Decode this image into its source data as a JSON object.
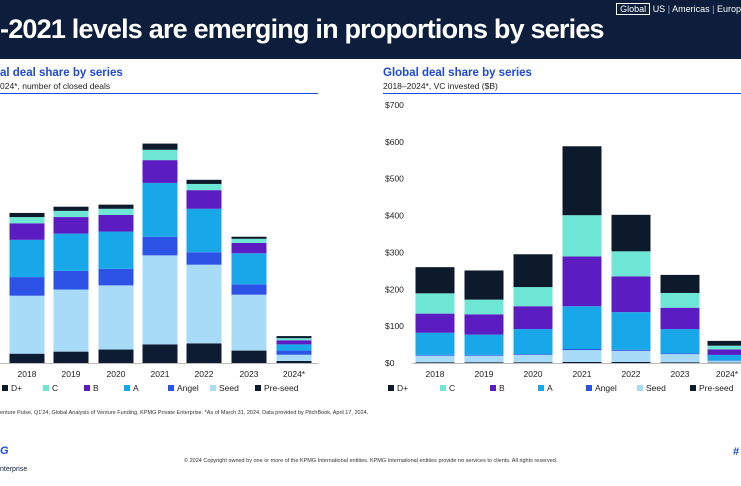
{
  "header": {
    "headline": "-2021 levels are emerging in proportions by series",
    "region_selected": "Global",
    "regions": [
      "US",
      "Americas",
      "Europ"
    ]
  },
  "left_chart": {
    "title": "al deal share by series",
    "subtitle": "024*, number of closed deals"
  },
  "right_chart": {
    "title": "Global deal share by series",
    "subtitle": "2018–2024*, VC invested ($B)"
  },
  "colors": {
    "D+": "#0c1a2c",
    "C": "#6ee6d6",
    "B": "#5b1cc2",
    "A": "#18a8ea",
    "Angel": "#2c53e6",
    "Seed": "#a8dbf8",
    "Pre-seed": "#0d1b33"
  },
  "legend_left": [
    "D+",
    "C",
    "B",
    "A",
    "Angel",
    "Seed",
    "Pre-seed"
  ],
  "legend_right": [
    "D+",
    "C",
    "B",
    "A",
    "Angel",
    "Seed",
    "Pre-seed"
  ],
  "footer": {
    "source": "enture Pulse, Q1'24, Global Analysis of Venture Funding, KPMG Private Enterprise. *As of March 31, 2024. Data provided by PitchBook, April 17, 2024.",
    "copyright": "© 2024 Copyright owned by one or more of the KPMG International entities. KPMG International entities provide no services to clients. All rights reserved.",
    "logo_top": "G",
    "logo_bottom": "nterprise",
    "hash": "#"
  },
  "chart_data": [
    {
      "type": "bar",
      "stacked": true,
      "title": "al deal share by series",
      "subtitle": "024*, number of closed deals",
      "categories": [
        "2018",
        "2019",
        "2020",
        "2021",
        "2022",
        "2023",
        "2024*"
      ],
      "series": [
        {
          "name": "Pre-seed",
          "values": [
            4.5,
            5.5,
            6.5,
            9,
            9.5,
            6,
            1
          ]
        },
        {
          "name": "Seed",
          "values": [
            28,
            30,
            31,
            43,
            38,
            27,
            3
          ]
        },
        {
          "name": "Angel",
          "values": [
            9,
            9,
            8,
            9,
            6,
            5,
            2
          ]
        },
        {
          "name": "A",
          "values": [
            18,
            18,
            18,
            26,
            21,
            15,
            3
          ]
        },
        {
          "name": "B",
          "values": [
            8,
            8,
            8,
            11,
            9,
            5,
            2
          ]
        },
        {
          "name": "C",
          "values": [
            3,
            3,
            3,
            5,
            3,
            2,
            1
          ]
        },
        {
          "name": "D+",
          "values": [
            2,
            2,
            2,
            3,
            2,
            1,
            1
          ]
        }
      ],
      "legend_position": "bottom"
    },
    {
      "type": "bar",
      "stacked": true,
      "title": "Global deal share by series",
      "subtitle": "2018–2024*, VC invested ($B)",
      "categories": [
        "2018",
        "2019",
        "2020",
        "2021",
        "2022",
        "2023",
        "2024*"
      ],
      "yticks": [
        "$0",
        "$100",
        "$200",
        "$300",
        "$400",
        "$500",
        "$600",
        "$700"
      ],
      "ylim": [
        0,
        700
      ],
      "series": [
        {
          "name": "Pre-seed",
          "values": [
            2,
            2,
            2,
            3,
            3,
            2,
            1
          ]
        },
        {
          "name": "Seed",
          "values": [
            18,
            18,
            20,
            32,
            30,
            22,
            5
          ]
        },
        {
          "name": "Angel",
          "values": [
            2,
            2,
            2,
            3,
            3,
            2,
            1
          ]
        },
        {
          "name": "A",
          "values": [
            60,
            55,
            68,
            116,
            102,
            66,
            15
          ]
        },
        {
          "name": "B",
          "values": [
            52,
            55,
            62,
            135,
            97,
            58,
            15
          ]
        },
        {
          "name": "C",
          "values": [
            55,
            40,
            52,
            112,
            68,
            40,
            10
          ]
        },
        {
          "name": "D+",
          "values": [
            71,
            79,
            89,
            187,
            99,
            49,
            13
          ]
        }
      ],
      "legend_position": "bottom"
    }
  ]
}
